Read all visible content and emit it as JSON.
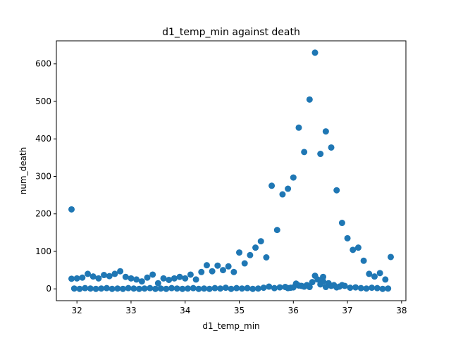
{
  "chart_data": {
    "type": "scatter",
    "title": "d1_temp_min against death",
    "xlabel": "d1_temp_min",
    "ylabel": "num_death",
    "xlim": [
      31.62,
      38.08
    ],
    "ylim": [
      -31.5,
      661.5
    ],
    "xticks": [
      32,
      33,
      34,
      35,
      36,
      37,
      38
    ],
    "yticks": [
      0,
      100,
      200,
      300,
      400,
      500,
      600
    ],
    "grid": false,
    "marker_color": "#1f77b4",
    "series": [
      {
        "points": [
          [
            31.9,
            212
          ],
          [
            31.9,
            27
          ],
          [
            32.0,
            28
          ],
          [
            32.1,
            30
          ],
          [
            32.2,
            40
          ],
          [
            32.3,
            33
          ],
          [
            32.4,
            28
          ],
          [
            32.5,
            37
          ],
          [
            32.6,
            34
          ],
          [
            32.7,
            40
          ],
          [
            32.8,
            47
          ],
          [
            32.9,
            32
          ],
          [
            33.0,
            28
          ],
          [
            33.1,
            25
          ],
          [
            33.2,
            20
          ],
          [
            33.3,
            30
          ],
          [
            33.4,
            38
          ],
          [
            33.5,
            15
          ],
          [
            33.6,
            28
          ],
          [
            33.7,
            24
          ],
          [
            33.8,
            28
          ],
          [
            33.9,
            32
          ],
          [
            34.0,
            28
          ],
          [
            34.1,
            38
          ],
          [
            34.2,
            25
          ],
          [
            34.3,
            45
          ],
          [
            34.4,
            63
          ],
          [
            34.5,
            47
          ],
          [
            34.6,
            62
          ],
          [
            34.7,
            50
          ],
          [
            34.8,
            60
          ],
          [
            34.9,
            45
          ],
          [
            35.0,
            97
          ],
          [
            35.1,
            68
          ],
          [
            35.2,
            90
          ],
          [
            35.3,
            110
          ],
          [
            35.4,
            127
          ],
          [
            35.5,
            84
          ],
          [
            35.6,
            275
          ],
          [
            35.7,
            157
          ],
          [
            35.8,
            252
          ],
          [
            35.9,
            267
          ],
          [
            36.0,
            297
          ],
          [
            36.1,
            430
          ],
          [
            36.2,
            365
          ],
          [
            36.3,
            505
          ],
          [
            36.4,
            630
          ],
          [
            36.5,
            360
          ],
          [
            36.6,
            420
          ],
          [
            36.7,
            377
          ],
          [
            36.8,
            263
          ],
          [
            36.9,
            176
          ],
          [
            37.0,
            135
          ],
          [
            37.1,
            104
          ],
          [
            37.2,
            110
          ],
          [
            37.3,
            75
          ],
          [
            37.4,
            40
          ],
          [
            37.5,
            33
          ],
          [
            37.6,
            42
          ],
          [
            37.7,
            25
          ],
          [
            37.8,
            85
          ],
          [
            31.95,
            1
          ],
          [
            32.05,
            0
          ],
          [
            32.15,
            2
          ],
          [
            32.25,
            1
          ],
          [
            32.35,
            0
          ],
          [
            32.45,
            1
          ],
          [
            32.55,
            2
          ],
          [
            32.65,
            0
          ],
          [
            32.75,
            1
          ],
          [
            32.85,
            0
          ],
          [
            32.95,
            2
          ],
          [
            33.05,
            1
          ],
          [
            33.15,
            0
          ],
          [
            33.25,
            1
          ],
          [
            33.35,
            2
          ],
          [
            33.45,
            0
          ],
          [
            33.55,
            1
          ],
          [
            33.65,
            0
          ],
          [
            33.75,
            2
          ],
          [
            33.85,
            1
          ],
          [
            33.95,
            0
          ],
          [
            34.05,
            1
          ],
          [
            34.15,
            2
          ],
          [
            34.25,
            0
          ],
          [
            34.35,
            1
          ],
          [
            34.45,
            0
          ],
          [
            34.55,
            2
          ],
          [
            34.65,
            1
          ],
          [
            34.75,
            3
          ],
          [
            34.85,
            0
          ],
          [
            34.95,
            2
          ],
          [
            35.05,
            1
          ],
          [
            35.15,
            2
          ],
          [
            35.25,
            0
          ],
          [
            35.35,
            1
          ],
          [
            35.45,
            3
          ],
          [
            35.55,
            6
          ],
          [
            35.65,
            2
          ],
          [
            35.75,
            4
          ],
          [
            35.85,
            5
          ],
          [
            35.95,
            3
          ],
          [
            36.05,
            14
          ],
          [
            36.15,
            8
          ],
          [
            36.25,
            10
          ],
          [
            36.35,
            18
          ],
          [
            36.45,
            25
          ],
          [
            36.55,
            20
          ],
          [
            36.65,
            15
          ],
          [
            36.75,
            10
          ],
          [
            36.85,
            6
          ],
          [
            36.95,
            8
          ],
          [
            37.05,
            3
          ],
          [
            37.15,
            4
          ],
          [
            37.25,
            2
          ],
          [
            37.35,
            1
          ],
          [
            37.45,
            3
          ],
          [
            37.55,
            2
          ],
          [
            37.65,
            0
          ],
          [
            37.75,
            1
          ],
          [
            36.4,
            35
          ],
          [
            36.55,
            32
          ],
          [
            36.3,
            5
          ],
          [
            36.5,
            12
          ],
          [
            36.7,
            8
          ],
          [
            36.9,
            10
          ],
          [
            36.2,
            6
          ],
          [
            36.0,
            4
          ],
          [
            36.1,
            9
          ],
          [
            35.9,
            2
          ],
          [
            36.6,
            5
          ],
          [
            36.8,
            4
          ]
        ]
      }
    ]
  }
}
